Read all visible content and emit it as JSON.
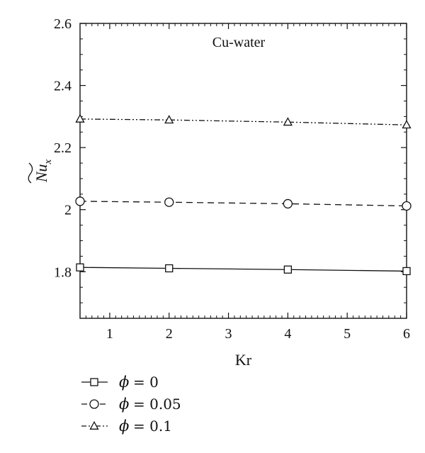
{
  "chart_data": {
    "type": "line",
    "annotation": "Cu-water",
    "xlabel": "Kr",
    "ylabel_base": "Nu",
    "ylabel_sub": "x",
    "xlim": [
      0.5,
      6
    ],
    "ylim": [
      1.65,
      2.6
    ],
    "xticks": [
      1,
      2,
      3,
      4,
      5,
      6
    ],
    "yticks": [
      1.8,
      2,
      2.2,
      2.4,
      2.6
    ],
    "ytick_labels": [
      "1.8",
      "2",
      "2.2",
      "2.4",
      "2.6"
    ],
    "grid": false,
    "legend_position": "bottom-left",
    "series": [
      {
        "symbol": "ϕ",
        "value_label": "= 0",
        "marker": "square",
        "line_style": "solid",
        "color": "#111111",
        "x": [
          0.5,
          2,
          4,
          6
        ],
        "y": [
          1.814,
          1.811,
          1.807,
          1.802
        ]
      },
      {
        "symbol": "ϕ",
        "value_label": "= 0.05",
        "marker": "circle",
        "line_style": "dashed",
        "color": "#111111",
        "x": [
          0.5,
          2,
          4,
          6
        ],
        "y": [
          2.027,
          2.024,
          2.019,
          2.012
        ]
      },
      {
        "symbol": "ϕ",
        "value_label": "= 0.1",
        "marker": "triangle",
        "line_style": "dash-dot-dot",
        "color": "#111111",
        "x": [
          0.5,
          2,
          4,
          6
        ],
        "y": [
          2.292,
          2.289,
          2.282,
          2.273
        ]
      }
    ]
  }
}
